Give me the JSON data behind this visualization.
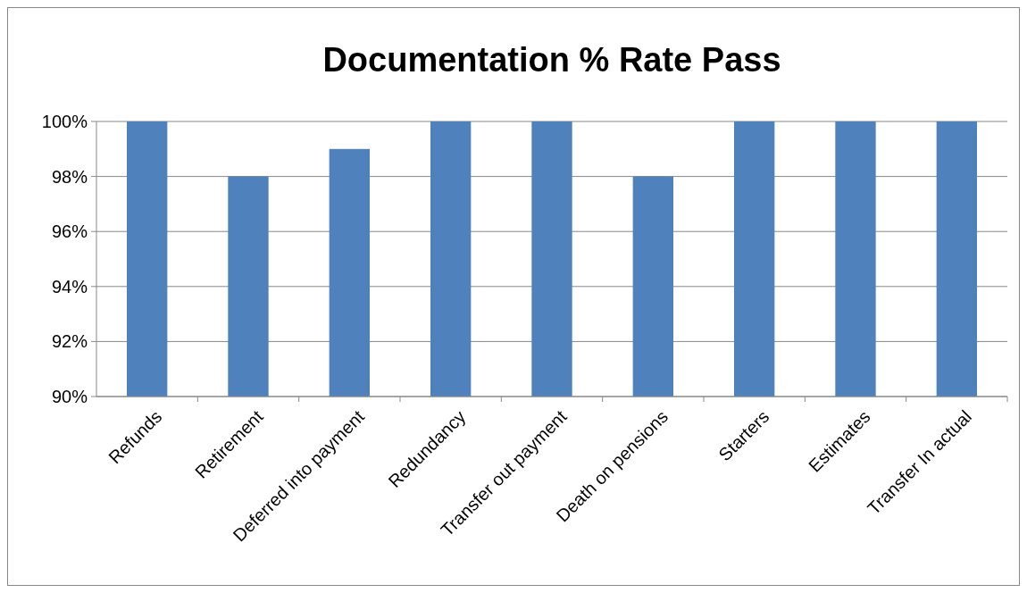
{
  "chart_data": {
    "type": "bar",
    "title": "Documentation % Rate Pass",
    "categories": [
      "Refunds",
      "Retirement",
      "Deferred into payment",
      "Redundancy",
      "Transfer out payment",
      "Death on pensions",
      "Starters",
      "Estimates",
      "Transfer In actual"
    ],
    "values": [
      100,
      98,
      99,
      100,
      100,
      98,
      100,
      100,
      100
    ],
    "color": "#4f81bd",
    "ylim": [
      90,
      100
    ],
    "yticks": [
      {
        "value": 90,
        "label": "90%"
      },
      {
        "value": 92,
        "label": "92%"
      },
      {
        "value": 94,
        "label": "94%"
      },
      {
        "value": 96,
        "label": "96%"
      },
      {
        "value": 98,
        "label": "98%"
      },
      {
        "value": 100,
        "label": "100%"
      }
    ],
    "grid": "y"
  }
}
